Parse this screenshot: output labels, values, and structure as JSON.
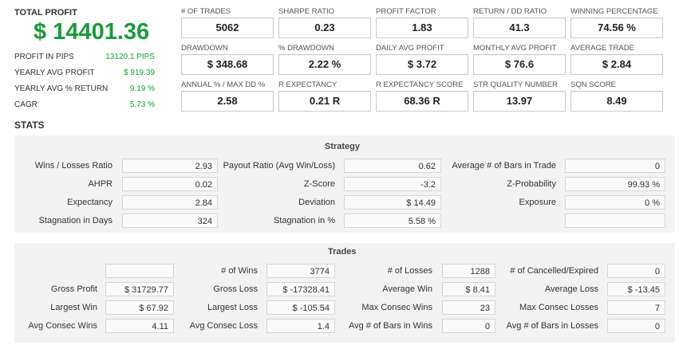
{
  "summary": {
    "total_profit_label": "TOTAL PROFIT",
    "total_profit_value": "$ 14401.36",
    "rows": [
      {
        "label": "PROFIT IN PIPS",
        "value": "13120.1 PIPS"
      },
      {
        "label": "YEARLY AVG PROFIT",
        "value": "$ 919.39"
      },
      {
        "label": "YEARLY AVG % RETURN",
        "value": "9.19 %"
      },
      {
        "label": "CAGR",
        "value": "5.73 %"
      }
    ]
  },
  "metrics": [
    {
      "label": "# OF TRADES",
      "value": "5062"
    },
    {
      "label": "SHARPE RATIO",
      "value": "0.23"
    },
    {
      "label": "PROFIT FACTOR",
      "value": "1.83"
    },
    {
      "label": "RETURN / DD RATIO",
      "value": "41.3"
    },
    {
      "label": "WINNING PERCENTAGE",
      "value": "74.56 %"
    },
    {
      "label": "DRAWDOWN",
      "value": "$ 348.68"
    },
    {
      "label": "% DRAWDOWN",
      "value": "2.22 %"
    },
    {
      "label": "DAILY AVG PROFIT",
      "value": "$ 3.72"
    },
    {
      "label": "MONTHLY AVG PROFIT",
      "value": "$ 76.6"
    },
    {
      "label": "AVERAGE TRADE",
      "value": "$ 2.84"
    },
    {
      "label": "ANNUAL % / MAX DD %",
      "value": "2.58"
    },
    {
      "label": "R EXPECTANCY",
      "value": "0.21 R"
    },
    {
      "label": "R EXPECTANCY SCORE",
      "value": "68.36 R"
    },
    {
      "label": "STR QUALITY NUMBER",
      "value": "13.97"
    },
    {
      "label": "SQN SCORE",
      "value": "8.49"
    }
  ],
  "stats_heading": "STATS",
  "strategy": {
    "title": "Strategy",
    "rows": [
      [
        {
          "label": "Wins / Losses Ratio",
          "value": "2.93"
        },
        {
          "label": "Payout Ratio (Avg Win/Loss)",
          "value": "0.62"
        },
        {
          "label": "Average # of Bars in Trade",
          "value": "0"
        }
      ],
      [
        {
          "label": "AHPR",
          "value": "0.02"
        },
        {
          "label": "Z-Score",
          "value": "-3.2"
        },
        {
          "label": "Z-Probability",
          "value": "99.93 %"
        }
      ],
      [
        {
          "label": "Expectancy",
          "value": "2.84"
        },
        {
          "label": "Deviation",
          "value": "$ 14.49"
        },
        {
          "label": "Exposure",
          "value": "0 %"
        }
      ],
      [
        {
          "label": "Stagnation in Days",
          "value": "324"
        },
        {
          "label": "Stagnation in %",
          "value": "5.58 %"
        },
        {
          "label": "",
          "value": ""
        }
      ]
    ]
  },
  "trades": {
    "title": "Trades",
    "rows": [
      [
        {
          "label": "",
          "value": ""
        },
        {
          "label": "# of Wins",
          "value": "3774"
        },
        {
          "label": "# of Losses",
          "value": "1288"
        },
        {
          "label": "# of Cancelled/Expired",
          "value": "0"
        }
      ],
      [
        {
          "label": "Gross Profit",
          "value": "$ 31729.77"
        },
        {
          "label": "Gross Loss",
          "value": "$ -17328.41"
        },
        {
          "label": "Average Win",
          "value": "$ 8.41"
        },
        {
          "label": "Average Loss",
          "value": "$ -13.45"
        }
      ],
      [
        {
          "label": "Largest Win",
          "value": "$ 67.92"
        },
        {
          "label": "Largest Loss",
          "value": "$ -105.54"
        },
        {
          "label": "Max Consec Wins",
          "value": "23"
        },
        {
          "label": "Max Consec Losses",
          "value": "7"
        }
      ],
      [
        {
          "label": "Avg Consec Wins",
          "value": "4.11"
        },
        {
          "label": "Avg Consec Loss",
          "value": "1.4"
        },
        {
          "label": "Avg # of Bars in Wins",
          "value": "0"
        },
        {
          "label": "Avg # of Bars in Losses",
          "value": "0"
        }
      ]
    ]
  }
}
